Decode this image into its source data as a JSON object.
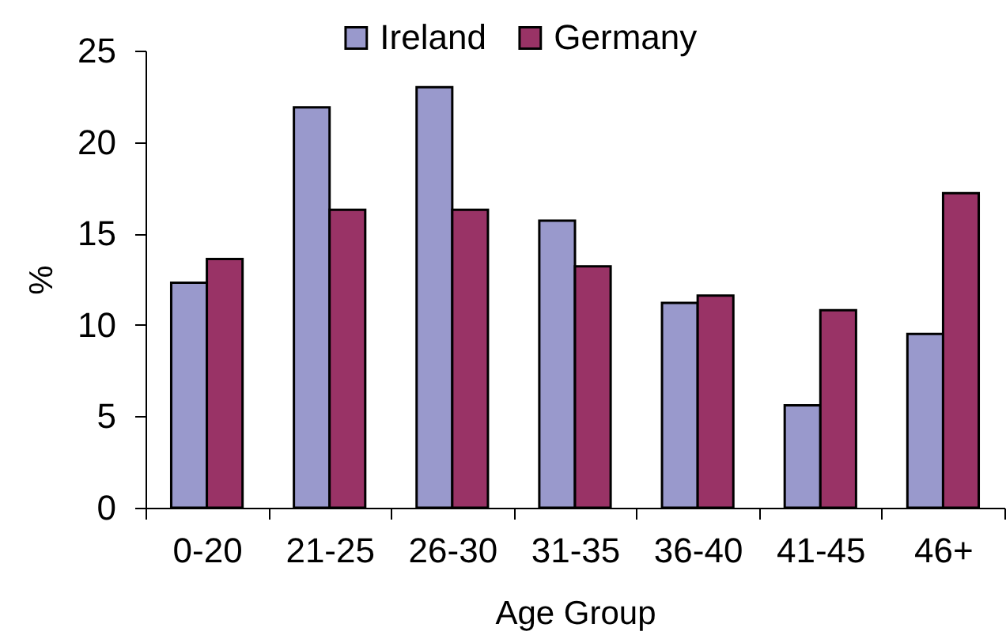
{
  "chart_data": {
    "type": "bar",
    "xlabel": "Age Group",
    "ylabel": "%",
    "categories": [
      "0-20",
      "21-25",
      "26-30",
      "31-35",
      "36-40",
      "41-45",
      "46+"
    ],
    "series": [
      {
        "name": "Ireland",
        "color": "#9999cc",
        "values": [
          12.3,
          21.9,
          23.0,
          15.7,
          11.2,
          5.6,
          9.5
        ]
      },
      {
        "name": "Germany",
        "color": "#993366",
        "values": [
          13.6,
          16.3,
          16.3,
          13.2,
          11.6,
          10.8,
          17.2
        ]
      }
    ],
    "ylim": [
      0,
      25
    ],
    "yticks": [
      0,
      5,
      10,
      15,
      20,
      25
    ],
    "grid": false,
    "legend": "top"
  }
}
